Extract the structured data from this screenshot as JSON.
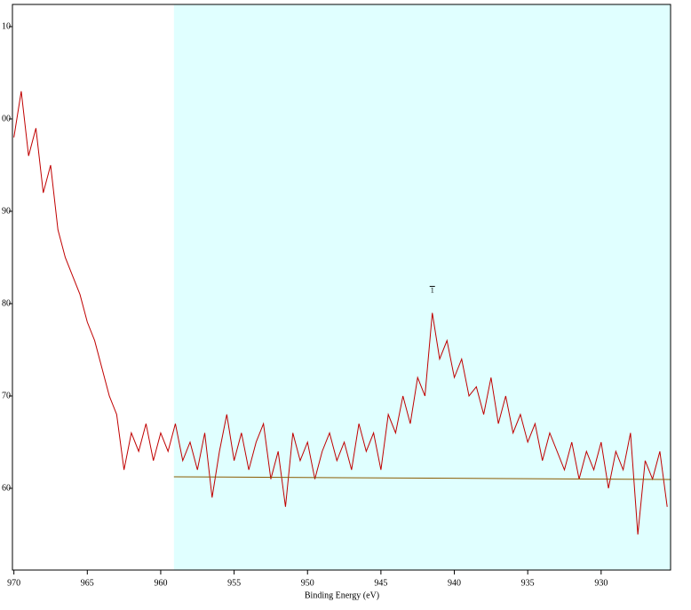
{
  "chart_data": {
    "type": "line",
    "x_label": "Binding Energy (eV)",
    "xlim": [
      970.1,
      925.27
    ],
    "ylim": [
      112.4,
      51.15
    ],
    "xticks": [
      970,
      965,
      960,
      955,
      950,
      945,
      940,
      935,
      930
    ],
    "yticks": [
      {
        "value": 110,
        "label": "10"
      },
      {
        "value": 100,
        "label": "00"
      },
      90,
      80,
      70,
      60
    ],
    "region": {
      "xlim": [
        959.1,
        925.27
      ],
      "color": "#e0ffff"
    },
    "annotation": {
      "text": "1",
      "x": 941.5,
      "y": 81
    },
    "series": [
      {
        "color": "#c00000",
        "x": [
          970,
          969.5,
          969,
          968.5,
          968,
          967.5,
          967,
          966.5,
          966,
          965.5,
          965,
          964.5,
          964,
          963.5,
          963,
          962.5,
          962,
          961.5,
          961,
          960.5,
          960,
          959.5,
          959,
          958.5,
          958,
          957.5,
          957,
          956.5,
          956,
          955.5,
          955,
          954.5,
          954,
          953.5,
          953,
          952.5,
          952,
          951.5,
          951,
          950.5,
          950,
          949.5,
          949,
          948.5,
          948,
          947.5,
          947,
          946.5,
          946,
          945.5,
          945,
          944.5,
          944,
          943.5,
          943,
          942.5,
          942,
          941.5,
          941,
          940.5,
          940,
          939.5,
          939,
          938.5,
          938,
          937.5,
          937,
          936.5,
          936,
          935.5,
          935,
          934.5,
          934,
          933.5,
          933,
          932.5,
          932,
          931.5,
          931,
          930.5,
          930,
          929.5,
          929,
          928.5,
          928,
          927.5,
          927,
          926.5,
          926,
          925.5
        ],
        "values": [
          98,
          103,
          96,
          99,
          92,
          95,
          88,
          85,
          83,
          81,
          78,
          76,
          73,
          70,
          68,
          62,
          66,
          64,
          67,
          63,
          66,
          64,
          67,
          63,
          65,
          62,
          66,
          59,
          64,
          68,
          63,
          66,
          62,
          65,
          67,
          61,
          64,
          58,
          66,
          63,
          65,
          61,
          64,
          66,
          63,
          65,
          62,
          67,
          64,
          66,
          62,
          68,
          66,
          70,
          67,
          72,
          70,
          79,
          74,
          76,
          72,
          74,
          70,
          71,
          68,
          72,
          67,
          70,
          66,
          68,
          65,
          67,
          63,
          66,
          64,
          62,
          65,
          61,
          64,
          62,
          65,
          60,
          64,
          62,
          66,
          55,
          63,
          61,
          64,
          58
        ]
      },
      {
        "color": "#8a5a00",
        "x": [
          959.1,
          925.27
        ],
        "values": [
          61.25,
          60.96
        ]
      }
    ]
  }
}
